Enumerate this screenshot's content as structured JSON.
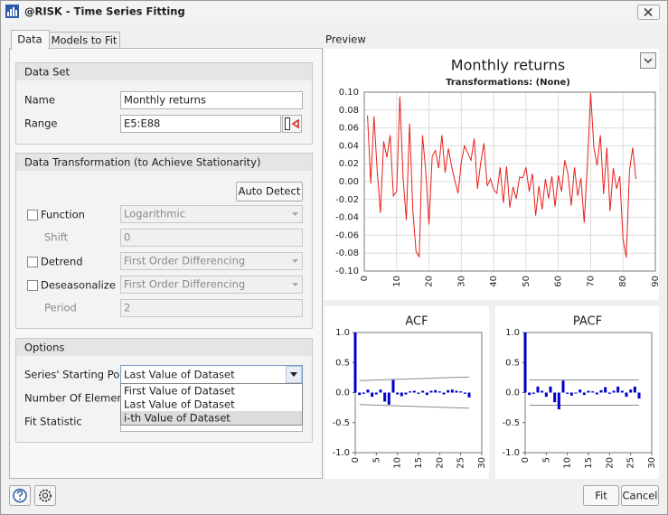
{
  "window": {
    "title": "@RISK - Time Series Fitting"
  },
  "tabs": [
    "Data",
    "Models to Fit"
  ],
  "preview_label": "Preview",
  "data_set": {
    "heading": "Data Set",
    "name_label": "Name",
    "name_value": "Monthly returns",
    "range_label": "Range",
    "range_value": "E5:E88"
  },
  "transformation": {
    "heading": "Data Transformation (to Achieve Stationarity)",
    "auto_detect": "Auto Detect",
    "function_label": "Function",
    "function_value": "Logarithmic",
    "shift_label": "Shift",
    "shift_value": "0",
    "detrend_label": "Detrend",
    "detrend_value": "First Order Differencing",
    "deseasonalize_label": "Deseasonalize",
    "deseasonalize_value": "First Order Differencing",
    "period_label": "Period",
    "period_value": "2"
  },
  "options": {
    "heading": "Options",
    "starting_point_label": "Series' Starting Point",
    "starting_point_value": "Last Value of Dataset",
    "starting_point_choices": [
      "First Value of Dataset",
      "Last Value of Dataset",
      "i-th Value of Dataset"
    ],
    "elements_label": "Number Of Elements",
    "fit_statistic_label": "Fit Statistic"
  },
  "buttons": {
    "fit": "Fit",
    "cancel": "Cancel"
  },
  "chart_data": [
    {
      "type": "line",
      "title": "Monthly returns",
      "subtitle": "Transformations: (None)",
      "color": "#e8201c",
      "grid": true,
      "x": [
        1,
        2,
        3,
        4,
        5,
        6,
        7,
        8,
        9,
        10,
        11,
        12,
        13,
        14,
        15,
        16,
        17,
        18,
        19,
        20,
        21,
        22,
        23,
        24,
        25,
        26,
        27,
        28,
        29,
        30,
        31,
        32,
        33,
        34,
        35,
        36,
        37,
        38,
        39,
        40,
        41,
        42,
        43,
        44,
        45,
        46,
        47,
        48,
        49,
        50,
        51,
        52,
        53,
        54,
        55,
        56,
        57,
        58,
        59,
        60,
        61,
        62,
        63,
        64,
        65,
        66,
        67,
        68,
        69,
        70,
        71,
        72,
        73,
        74,
        75,
        76,
        77,
        78,
        79,
        80,
        81,
        82,
        83,
        84
      ],
      "values": [
        0.074,
        -0.002,
        0.073,
        0.012,
        -0.035,
        0.045,
        0.027,
        0.052,
        -0.016,
        -0.011,
        0.095,
        0.004,
        -0.043,
        0.065,
        -0.031,
        -0.078,
        -0.084,
        0.052,
        0.012,
        -0.048,
        0.028,
        0.035,
        0.015,
        0.052,
        0.01,
        0.037,
        0.017,
        0.001,
        -0.013,
        0.022,
        0.04,
        0.032,
        0.024,
        0.048,
        -0.008,
        0.021,
        0.043,
        -0.005,
        0.003,
        -0.009,
        -0.013,
        0.016,
        -0.024,
        0.017,
        -0.029,
        -0.006,
        -0.019,
        0.005,
        0.004,
        0.016,
        -0.011,
        0.009,
        -0.038,
        -0.005,
        -0.031,
        0.003,
        -0.019,
        0.006,
        -0.028,
        0.007,
        -0.011,
        0.024,
        0.008,
        -0.027,
        0.016,
        -0.016,
        0.004,
        -0.046,
        0.02,
        0.099,
        0.038,
        0.018,
        0.052,
        -0.014,
        0.038,
        -0.033,
        0.015,
        -0.008,
        0.006,
        -0.064,
        -0.085,
        0.012,
        0.038,
        0.003
      ],
      "xlim": [
        0,
        90
      ],
      "xticks": [
        0,
        10,
        20,
        30,
        40,
        50,
        60,
        70,
        80,
        90
      ],
      "ylim": [
        -0.1,
        0.1
      ],
      "yticks": [
        {
          "value": -0.1,
          "label": "-0.10"
        },
        -0.08,
        -0.06,
        -0.04,
        -0.02,
        {
          "value": 0,
          "label": "0.00"
        },
        0.02,
        0.04,
        0.06,
        0.08,
        {
          "value": 0.1,
          "label": "0.10"
        }
      ]
    },
    {
      "type": "bar",
      "title": "ACF",
      "color": "#0000cc",
      "grid": false,
      "x": [
        0,
        1,
        2,
        3,
        4,
        5,
        6,
        7,
        8,
        9,
        10,
        11,
        12,
        13,
        14,
        15,
        16,
        17,
        18,
        19,
        20,
        21,
        22,
        23,
        24,
        25,
        26,
        27
      ],
      "values": [
        1.0,
        -0.04,
        -0.02,
        0.05,
        -0.07,
        -0.03,
        0.05,
        -0.15,
        -0.2,
        0.21,
        -0.03,
        -0.06,
        -0.03,
        0.02,
        0.03,
        -0.02,
        0.03,
        -0.04,
        0.03,
        0.04,
        0.02,
        -0.03,
        0.04,
        0.05,
        0.03,
        0.02,
        -0.02,
        -0.08
      ],
      "bounds": {
        "x": [
          1,
          27
        ],
        "upper": [
          0.2,
          0.26
        ],
        "lower": [
          -0.2,
          -0.26
        ]
      },
      "xlim": [
        0,
        30
      ],
      "xticks": [
        0,
        5,
        10,
        15,
        20,
        25,
        30
      ],
      "ylim": [
        -1,
        1
      ],
      "yticks": [
        {
          "value": -1,
          "label": "-1.0"
        },
        -0.5,
        {
          "value": 0,
          "label": "0.0"
        },
        0.5,
        {
          "value": 1,
          "label": "1.0"
        }
      ]
    },
    {
      "type": "bar",
      "title": "PACF",
      "color": "#0000cc",
      "grid": false,
      "x": [
        0,
        1,
        2,
        3,
        4,
        5,
        6,
        7,
        8,
        9,
        10,
        11,
        12,
        13,
        14,
        15,
        16,
        17,
        18,
        19,
        20,
        21,
        22,
        23,
        24,
        25,
        26,
        27
      ],
      "values": [
        1.0,
        -0.04,
        -0.02,
        0.1,
        0.03,
        -0.07,
        0.1,
        -0.16,
        -0.28,
        0.2,
        -0.02,
        -0.05,
        0.0,
        0.05,
        -0.04,
        0.03,
        0.02,
        -0.03,
        0.04,
        0.09,
        -0.02,
        0.03,
        0.1,
        0.03,
        -0.07,
        0.05,
        0.1,
        -0.1
      ],
      "bounds": {
        "x": [
          1,
          27
        ],
        "upper": [
          0.21,
          0.21
        ],
        "lower": [
          -0.21,
          -0.21
        ]
      },
      "xlim": [
        0,
        30
      ],
      "xticks": [
        0,
        5,
        10,
        15,
        20,
        25,
        30
      ],
      "ylim": [
        -1,
        1
      ],
      "yticks": [
        {
          "value": -1,
          "label": "-1.0"
        },
        -0.5,
        {
          "value": 0,
          "label": "0.0"
        },
        0.5,
        {
          "value": 1,
          "label": "1.0"
        }
      ]
    }
  ]
}
